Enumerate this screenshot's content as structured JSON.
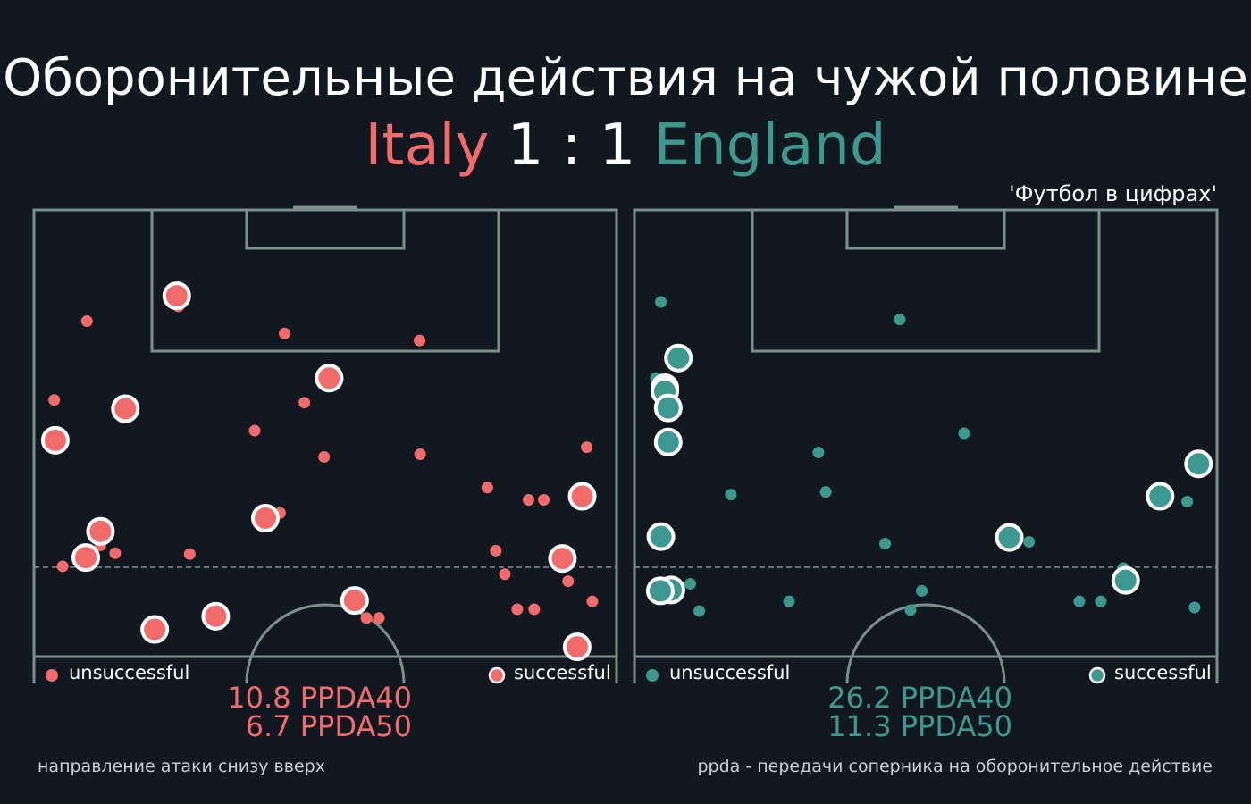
{
  "title": "Оборонительные действия на чужой половине",
  "match": {
    "home_team": "Italy",
    "score": "1 : 1",
    "away_team": "England",
    "home_color": "#f26b6b",
    "away_color": "#3d9990"
  },
  "credit": "'Футбол в цифрах'",
  "footer_left": "направление атаки снизу вверх",
  "footer_right": "ppda - передачи соперника на оборонительное действие",
  "chart_data": [
    {
      "type": "scatter",
      "team": "Italy",
      "color": "#f26b6b",
      "legend": {
        "unsuccessful": "unsuccessful",
        "successful": "successful"
      },
      "ppda40_label": "10.8 PPDA40",
      "ppda50_label": "6.7 PPDA50",
      "ppda40": 10.8,
      "ppda50": 6.7,
      "xlim": [
        0,
        100
      ],
      "ylim": [
        0,
        100
      ],
      "unsuccessful": [
        {
          "x": 7.8,
          "y": 75.6
        },
        {
          "x": 24.0,
          "y": 79.0
        },
        {
          "x": 42.8,
          "y": 72.8
        },
        {
          "x": 66.7,
          "y": 71.2
        },
        {
          "x": 2.0,
          "y": 57.6
        },
        {
          "x": 14.2,
          "y": 53.5
        },
        {
          "x": 46.3,
          "y": 57.0
        },
        {
          "x": 37.5,
          "y": 50.6
        },
        {
          "x": 49.8,
          "y": 44.6
        },
        {
          "x": 66.8,
          "y": 45.2
        },
        {
          "x": 96.3,
          "y": 46.8
        },
        {
          "x": 78.7,
          "y": 37.6
        },
        {
          "x": 86.0,
          "y": 34.8
        },
        {
          "x": 88.7,
          "y": 34.8
        },
        {
          "x": 42.0,
          "y": 31.8
        },
        {
          "x": 10.2,
          "y": 24.4
        },
        {
          "x": 12.8,
          "y": 22.6
        },
        {
          "x": 3.5,
          "y": 19.6
        },
        {
          "x": 26.0,
          "y": 22.4
        },
        {
          "x": 80.2,
          "y": 23.2
        },
        {
          "x": 81.8,
          "y": 17.8
        },
        {
          "x": 93.0,
          "y": 16.2
        },
        {
          "x": 97.3,
          "y": 11.6
        },
        {
          "x": 84.0,
          "y": 9.8
        },
        {
          "x": 87.0,
          "y": 9.8
        },
        {
          "x": 57.3,
          "y": 7.8
        },
        {
          "x": 59.5,
          "y": 7.8
        }
      ],
      "successful": [
        {
          "x": 23.7,
          "y": 81.4
        },
        {
          "x": 50.7,
          "y": 62.6
        },
        {
          "x": 14.6,
          "y": 55.6
        },
        {
          "x": 2.2,
          "y": 48.4
        },
        {
          "x": 95.5,
          "y": 35.6
        },
        {
          "x": 39.4,
          "y": 30.6
        },
        {
          "x": 10.2,
          "y": 27.6
        },
        {
          "x": 7.6,
          "y": 21.6
        },
        {
          "x": 92.0,
          "y": 21.4
        },
        {
          "x": 55.2,
          "y": 11.8
        },
        {
          "x": 30.6,
          "y": 8.2
        },
        {
          "x": 19.8,
          "y": 5.2
        },
        {
          "x": 94.6,
          "y": 1.2
        }
      ]
    },
    {
      "type": "scatter",
      "team": "England",
      "color": "#3d9990",
      "legend": {
        "unsuccessful": "unsuccessful",
        "successful": "successful"
      },
      "ppda40_label": "26.2 PPDA40",
      "ppda50_label": "11.3 PPDA50",
      "ppda40": 26.2,
      "ppda50": 11.3,
      "xlim": [
        0,
        100
      ],
      "ylim": [
        0,
        100
      ],
      "unsuccessful": [
        {
          "x": 3.1,
          "y": 80.0
        },
        {
          "x": 45.4,
          "y": 76.0
        },
        {
          "x": 2.2,
          "y": 62.6
        },
        {
          "x": 56.8,
          "y": 50.0
        },
        {
          "x": 31.0,
          "y": 45.6
        },
        {
          "x": 32.3,
          "y": 36.6
        },
        {
          "x": 15.5,
          "y": 36.0
        },
        {
          "x": 42.8,
          "y": 24.8
        },
        {
          "x": 68.3,
          "y": 25.2
        },
        {
          "x": 97.8,
          "y": 41.4
        },
        {
          "x": 96.3,
          "y": 34.4
        },
        {
          "x": 85.0,
          "y": 19.2
        },
        {
          "x": 8.3,
          "y": 15.6
        },
        {
          "x": 49.3,
          "y": 14.0
        },
        {
          "x": 25.8,
          "y": 11.6
        },
        {
          "x": 47.3,
          "y": 9.6
        },
        {
          "x": 9.9,
          "y": 9.4
        },
        {
          "x": 77.2,
          "y": 11.6
        },
        {
          "x": 81.0,
          "y": 11.6
        },
        {
          "x": 97.6,
          "y": 10.2
        }
      ],
      "successful": [
        {
          "x": 6.2,
          "y": 67.2
        },
        {
          "x": 3.8,
          "y": 60.4
        },
        {
          "x": 3.8,
          "y": 59.6
        },
        {
          "x": 4.4,
          "y": 55.8
        },
        {
          "x": 4.4,
          "y": 48.0
        },
        {
          "x": 98.3,
          "y": 43.0
        },
        {
          "x": 91.5,
          "y": 35.6
        },
        {
          "x": 3.1,
          "y": 26.4
        },
        {
          "x": 64.8,
          "y": 26.2
        },
        {
          "x": 85.4,
          "y": 16.4
        },
        {
          "x": 4.9,
          "y": 14.2
        },
        {
          "x": 3.0,
          "y": 14.0
        }
      ]
    }
  ]
}
